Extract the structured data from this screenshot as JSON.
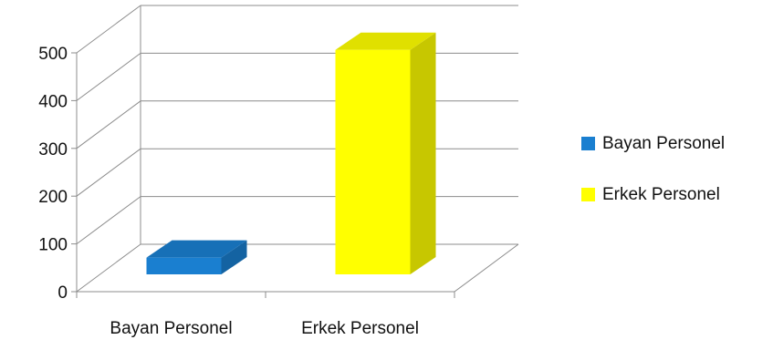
{
  "chart_data": {
    "type": "bar",
    "title": "",
    "xlabel": "",
    "ylabel": "",
    "categories": [
      "Bayan Personel",
      "Erkek Personel"
    ],
    "series": [
      {
        "name": "Bayan Personel",
        "values": [
          35,
          null
        ],
        "color": "#1a7fd0"
      },
      {
        "name": "Erkek Personel",
        "values": [
          null,
          470
        ],
        "color": "#ffff00"
      }
    ],
    "ylim": [
      0,
      500
    ],
    "yticks": [
      "0",
      "100",
      "200",
      "300",
      "400",
      "500"
    ],
    "grid": true,
    "legend": "right",
    "style": "3d-column"
  }
}
